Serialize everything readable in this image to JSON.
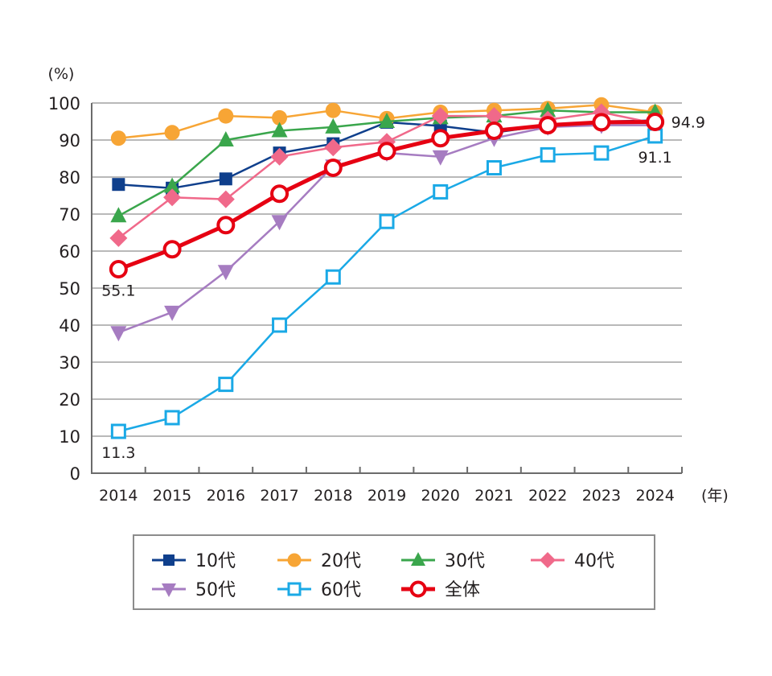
{
  "chart_data": {
    "type": "line",
    "title": "",
    "xlabel": "",
    "ylabel": "(%)",
    "x_unit": "(年)",
    "x": [
      "2014",
      "2015",
      "2016",
      "2017",
      "2018",
      "2019",
      "2020",
      "2021",
      "2022",
      "2023",
      "2024"
    ],
    "ylim": [
      0,
      100
    ],
    "yticks": [
      0,
      10,
      20,
      30,
      40,
      50,
      60,
      70,
      80,
      90,
      100
    ],
    "grid": true,
    "legend_position": "bottom",
    "series": [
      {
        "name": "10代",
        "color": "#0f3f8c",
        "marker": "square-filled",
        "values": [
          78.0,
          77.0,
          79.5,
          86.5,
          89.0,
          94.8,
          93.8,
          92.0,
          94.0,
          95.0,
          95.3
        ]
      },
      {
        "name": "20代",
        "color": "#f7a535",
        "marker": "circle-filled",
        "values": [
          90.5,
          92.0,
          96.5,
          96.0,
          98.0,
          95.8,
          97.5,
          98.0,
          98.5,
          99.5,
          97.5
        ]
      },
      {
        "name": "30代",
        "color": "#3aa64c",
        "marker": "triangle-up-filled",
        "values": [
          69.5,
          77.5,
          90.0,
          92.5,
          93.5,
          95.0,
          96.0,
          96.5,
          98.0,
          97.5,
          97.5
        ]
      },
      {
        "name": "40代",
        "color": "#f0698a",
        "marker": "diamond-filled",
        "values": [
          63.5,
          74.5,
          74.0,
          85.5,
          88.0,
          89.5,
          96.5,
          96.5,
          95.5,
          97.5,
          94.5
        ]
      },
      {
        "name": "50代",
        "color": "#a67cc1",
        "marker": "triangle-down-filled",
        "values": [
          38.0,
          43.5,
          54.5,
          68.0,
          83.0,
          86.5,
          85.5,
          90.5,
          93.5,
          94.0,
          94.0
        ]
      },
      {
        "name": "60代",
        "color": "#1aa9e6",
        "marker": "square-open",
        "values": [
          11.3,
          15.0,
          24.0,
          40.0,
          53.0,
          68.0,
          76.0,
          82.5,
          86.0,
          86.5,
          91.1
        ]
      },
      {
        "name": "全体",
        "color": "#e60012",
        "marker": "circle-open",
        "values": [
          55.1,
          60.5,
          67.0,
          75.5,
          82.5,
          87.0,
          90.5,
          92.5,
          94.0,
          94.8,
          94.9
        ]
      }
    ],
    "annotations": [
      {
        "text": "55.1",
        "series": "全体",
        "x": "2014",
        "position": "below"
      },
      {
        "text": "11.3",
        "series": "60代",
        "x": "2014",
        "position": "below"
      },
      {
        "text": "94.9",
        "series": "全体",
        "x": "2024",
        "position": "right"
      },
      {
        "text": "91.1",
        "series": "60代",
        "x": "2024",
        "position": "below"
      }
    ]
  }
}
